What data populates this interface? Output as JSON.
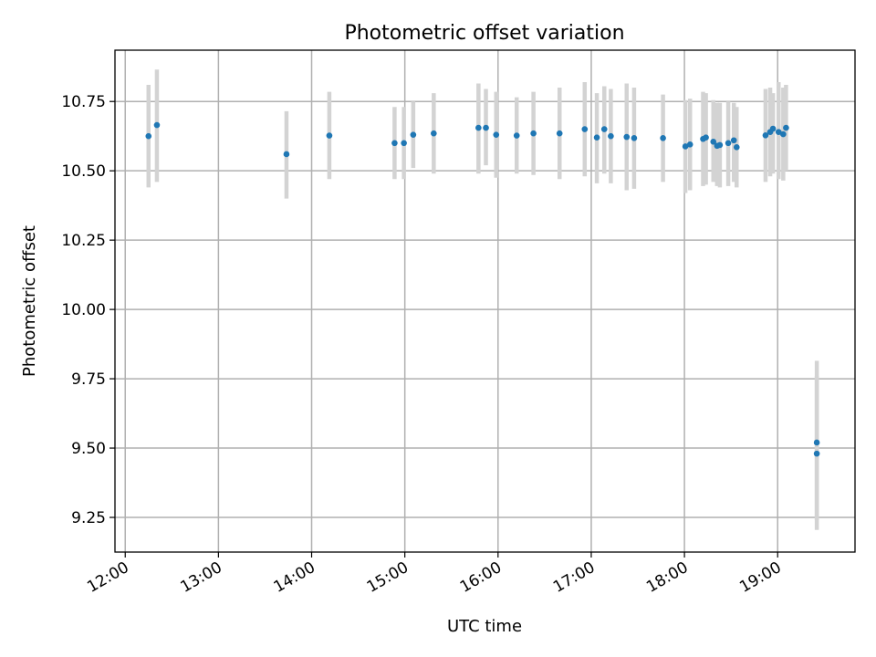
{
  "chart_data": {
    "type": "scatter",
    "title": "Photometric offset variation",
    "xlabel": "UTC time",
    "ylabel": "Photometric offset",
    "grid": true,
    "x_unit": "hours UTC",
    "xlim": [
      11.89,
      19.83
    ],
    "ylim": [
      9.125,
      10.935
    ],
    "xticks": [
      {
        "value": 12,
        "label": "12:00"
      },
      {
        "value": 13,
        "label": "13:00"
      },
      {
        "value": 14,
        "label": "14:00"
      },
      {
        "value": 15,
        "label": "15:00"
      },
      {
        "value": 16,
        "label": "16:00"
      },
      {
        "value": 17,
        "label": "17:00"
      },
      {
        "value": 18,
        "label": "18:00"
      },
      {
        "value": 19,
        "label": "19:00"
      }
    ],
    "yticks": [
      {
        "value": 9.25,
        "label": "9.25"
      },
      {
        "value": 9.5,
        "label": "9.50"
      },
      {
        "value": 9.75,
        "label": "9.75"
      },
      {
        "value": 10.0,
        "label": "10.00"
      },
      {
        "value": 10.25,
        "label": "10.25"
      },
      {
        "value": 10.5,
        "label": "10.50"
      },
      {
        "value": 10.75,
        "label": "10.75"
      }
    ],
    "point_color": "#1f77b4",
    "errorbar_color": "#d3d3d3",
    "points": [
      {
        "x": 12.25,
        "y": 10.625,
        "lo": 10.44,
        "hi": 10.81
      },
      {
        "x": 12.34,
        "y": 10.665,
        "lo": 10.46,
        "hi": 10.865
      },
      {
        "x": 13.73,
        "y": 10.56,
        "lo": 10.4,
        "hi": 10.715
      },
      {
        "x": 14.19,
        "y": 10.627,
        "lo": 10.47,
        "hi": 10.785
      },
      {
        "x": 14.89,
        "y": 10.6,
        "lo": 10.47,
        "hi": 10.73
      },
      {
        "x": 14.99,
        "y": 10.6,
        "lo": 10.47,
        "hi": 10.73
      },
      {
        "x": 15.09,
        "y": 10.63,
        "lo": 10.51,
        "hi": 10.75
      },
      {
        "x": 15.31,
        "y": 10.635,
        "lo": 10.49,
        "hi": 10.78
      },
      {
        "x": 15.79,
        "y": 10.655,
        "lo": 10.49,
        "hi": 10.815
      },
      {
        "x": 15.87,
        "y": 10.655,
        "lo": 10.52,
        "hi": 10.795
      },
      {
        "x": 15.98,
        "y": 10.63,
        "lo": 10.475,
        "hi": 10.785
      },
      {
        "x": 16.2,
        "y": 10.627,
        "lo": 10.49,
        "hi": 10.765
      },
      {
        "x": 16.38,
        "y": 10.635,
        "lo": 10.485,
        "hi": 10.785
      },
      {
        "x": 16.66,
        "y": 10.635,
        "lo": 10.47,
        "hi": 10.8
      },
      {
        "x": 16.93,
        "y": 10.65,
        "lo": 10.48,
        "hi": 10.82
      },
      {
        "x": 17.06,
        "y": 10.62,
        "lo": 10.455,
        "hi": 10.78
      },
      {
        "x": 17.14,
        "y": 10.65,
        "lo": 10.49,
        "hi": 10.805
      },
      {
        "x": 17.21,
        "y": 10.625,
        "lo": 10.455,
        "hi": 10.795
      },
      {
        "x": 17.38,
        "y": 10.622,
        "lo": 10.43,
        "hi": 10.815
      },
      {
        "x": 17.46,
        "y": 10.618,
        "lo": 10.435,
        "hi": 10.8
      },
      {
        "x": 17.77,
        "y": 10.618,
        "lo": 10.46,
        "hi": 10.775
      },
      {
        "x": 18.01,
        "y": 10.588,
        "lo": 10.42,
        "hi": 10.755
      },
      {
        "x": 18.06,
        "y": 10.595,
        "lo": 10.43,
        "hi": 10.76
      },
      {
        "x": 18.2,
        "y": 10.615,
        "lo": 10.445,
        "hi": 10.785
      },
      {
        "x": 18.23,
        "y": 10.62,
        "lo": 10.45,
        "hi": 10.78
      },
      {
        "x": 18.31,
        "y": 10.605,
        "lo": 10.46,
        "hi": 10.755
      },
      {
        "x": 18.35,
        "y": 10.59,
        "lo": 10.445,
        "hi": 10.745
      },
      {
        "x": 18.38,
        "y": 10.593,
        "lo": 10.44,
        "hi": 10.745
      },
      {
        "x": 18.47,
        "y": 10.6,
        "lo": 10.445,
        "hi": 10.75
      },
      {
        "x": 18.53,
        "y": 10.61,
        "lo": 10.46,
        "hi": 10.745
      },
      {
        "x": 18.56,
        "y": 10.585,
        "lo": 10.44,
        "hi": 10.73
      },
      {
        "x": 18.87,
        "y": 10.628,
        "lo": 10.46,
        "hi": 10.795
      },
      {
        "x": 18.92,
        "y": 10.64,
        "lo": 10.48,
        "hi": 10.8
      },
      {
        "x": 18.95,
        "y": 10.652,
        "lo": 10.49,
        "hi": 10.78
      },
      {
        "x": 19.01,
        "y": 10.64,
        "lo": 10.47,
        "hi": 10.82
      },
      {
        "x": 19.06,
        "y": 10.632,
        "lo": 10.465,
        "hi": 10.8
      },
      {
        "x": 19.09,
        "y": 10.655,
        "lo": 10.5,
        "hi": 10.81
      },
      {
        "x": 19.42,
        "y": 9.52,
        "lo": 9.24,
        "hi": 9.815
      },
      {
        "x": 19.42,
        "y": 9.48,
        "lo": 9.205,
        "hi": 9.76
      }
    ]
  }
}
